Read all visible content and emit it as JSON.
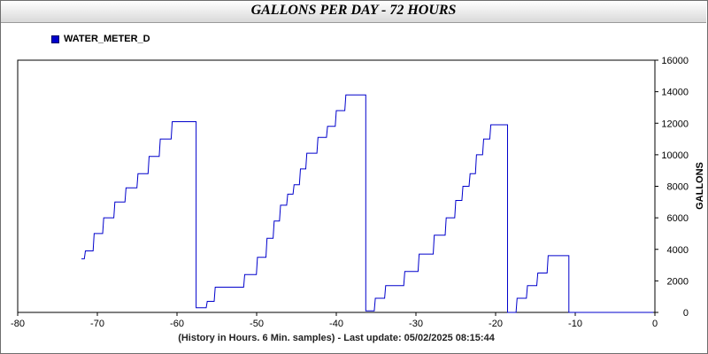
{
  "chart_data": {
    "type": "line",
    "title": "GALLONS PER DAY - 72 HOURS",
    "xlabel": "(History in Hours. 6 Min. samples) - Last update: 05/02/2025 08:15:44",
    "ylabel": "GALLONS",
    "xlim": [
      -80,
      0
    ],
    "ylim": [
      0,
      16000
    ],
    "x_ticks": [
      -80,
      -70,
      -60,
      -50,
      -40,
      -30,
      -20,
      -10,
      0
    ],
    "y_ticks": [
      0,
      2000,
      4000,
      6000,
      8000,
      10000,
      12000,
      14000,
      16000
    ],
    "y_axis_side": "right",
    "grid": false,
    "legend_position": "top-left",
    "series": [
      {
        "name": "WATER_METER_D",
        "color": "#0000cc",
        "x": [
          -72.0,
          -71.5,
          -70.4,
          -69.2,
          -67.8,
          -66.4,
          -64.9,
          -63.5,
          -62.1,
          -60.6,
          -59.1,
          -57.6,
          -56.2,
          -55.2,
          -53.6,
          -51.5,
          -49.9,
          -48.7,
          -47.8,
          -47.0,
          -46.1,
          -45.3,
          -44.5,
          -43.7,
          -42.3,
          -41.1,
          -40.0,
          -38.8,
          -37.5,
          -36.3,
          -35.1,
          -33.8,
          -32.5,
          -31.4,
          -29.6,
          -27.7,
          -26.2,
          -25.0,
          -24.1,
          -23.2,
          -22.4,
          -21.5,
          -20.6,
          -19.6,
          -18.5,
          -17.3,
          -16.0,
          -14.7,
          -13.4,
          -12.1,
          -10.8,
          -9.6,
          -8.2,
          -7.5,
          -5.7,
          -4.7,
          -3.3,
          -1.9,
          -0.6,
          -0.2
        ],
        "y": [
          3400,
          3900,
          5000,
          6000,
          7000,
          7900,
          8800,
          9900,
          11000,
          12100,
          12100,
          300,
          700,
          1600,
          1600,
          2400,
          3500,
          4700,
          5800,
          6800,
          7500,
          8100,
          9100,
          10100,
          11100,
          11800,
          12800,
          13800,
          13800,
          100,
          900,
          1700,
          1700,
          2600,
          3700,
          4900,
          6000,
          7100,
          8000,
          8800,
          10000,
          11000,
          11900,
          11900,
          0,
          900,
          1700,
          2500,
          3600,
          3600,
          0,
          0,
          0,
          0,
          0,
          0,
          0,
          0,
          0,
          0
        ]
      }
    ]
  }
}
